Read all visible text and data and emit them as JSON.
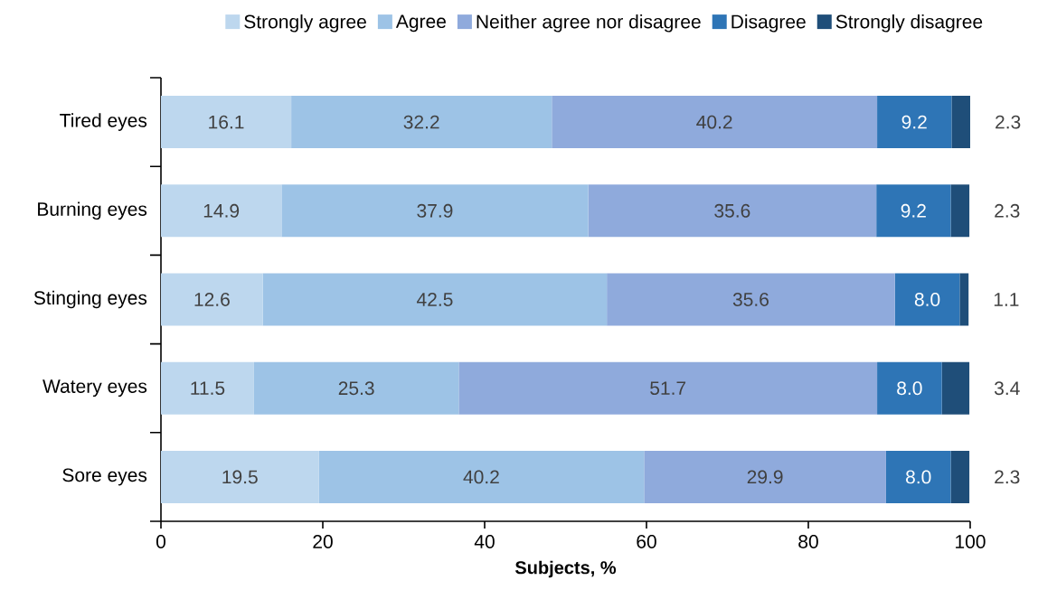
{
  "chart_data": {
    "type": "bar",
    "orientation": "horizontal",
    "stacked": true,
    "xlabel": "Subjects, %",
    "categories": [
      "Tired eyes",
      "Burning eyes",
      "Stinging eyes",
      "Watery eyes",
      "Sore eyes"
    ],
    "series": [
      {
        "name": "Strongly agree",
        "color": "#bdd7ee",
        "values": [
          16.1,
          14.9,
          12.6,
          11.5,
          19.5
        ],
        "value_labels": [
          "16.1",
          "14.9",
          "12.6",
          "11.5",
          "19.5"
        ]
      },
      {
        "name": "Agree",
        "color": "#9dc3e6",
        "values": [
          32.2,
          37.9,
          42.5,
          25.3,
          40.2
        ],
        "value_labels": [
          "32.2",
          "37.9",
          "42.5",
          "25.3",
          "40.2"
        ]
      },
      {
        "name": "Neither agree nor disagree",
        "color": "#8faadc",
        "values": [
          40.2,
          35.6,
          35.6,
          51.7,
          29.9
        ],
        "value_labels": [
          "40.2",
          "35.6",
          "35.6",
          "51.7",
          "29.9"
        ]
      },
      {
        "name": "Disagree",
        "color": "#2e75b6",
        "values": [
          9.2,
          9.2,
          8.0,
          8.0,
          8.0
        ],
        "value_labels": [
          "9.2",
          "9.2",
          "8.0",
          "8.0",
          "8.0"
        ]
      },
      {
        "name": "Strongly disagree",
        "color": "#1f4e79",
        "values": [
          2.3,
          2.3,
          1.1,
          3.4,
          2.3
        ],
        "value_labels": [
          "2.3",
          "2.3",
          "1.1",
          "3.4",
          "2.3"
        ]
      }
    ],
    "xlim": [
      0,
      100
    ],
    "xticks": [
      0,
      20,
      40,
      60,
      80,
      100
    ],
    "grid": false,
    "legend": "top"
  }
}
